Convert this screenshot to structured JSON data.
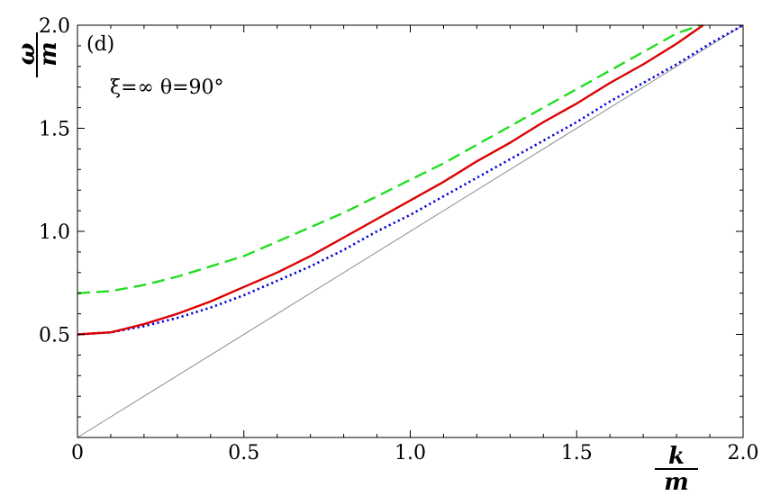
{
  "chart_data": {
    "type": "line",
    "panel_label": "(d)",
    "annotation": "ξ=∞  θ=90°",
    "xlabel": {
      "numerator": "k",
      "denominator": "m"
    },
    "ylabel": {
      "numerator": "ω",
      "denominator": "m"
    },
    "xlim": [
      0,
      2.0
    ],
    "ylim": [
      0,
      2.0
    ],
    "x_ticks": [
      0,
      0.5,
      1.0,
      1.5,
      2.0
    ],
    "x_tick_labels": [
      "0",
      "0.5",
      "1.0",
      "1.5",
      "2.0"
    ],
    "y_ticks": [
      0.5,
      1.0,
      1.5,
      2.0
    ],
    "y_tick_labels": [
      "0.5",
      "1.0",
      "1.5",
      "2.0"
    ],
    "grid": false,
    "series": [
      {
        "style": "solid-gray",
        "color": "#8c8c8c",
        "x": [
          0,
          2.0
        ],
        "y": [
          0,
          2.0
        ]
      },
      {
        "style": "dotted",
        "color": "#0000dd",
        "x": [
          0,
          0.1,
          0.2,
          0.3,
          0.4,
          0.5,
          0.6,
          0.7,
          0.8,
          0.9,
          1.0,
          1.1,
          1.2,
          1.3,
          1.4,
          1.5,
          1.6,
          1.7,
          1.8,
          1.9,
          2.0
        ],
        "y": [
          0.5,
          0.51,
          0.54,
          0.58,
          0.63,
          0.69,
          0.76,
          0.83,
          0.91,
          1.0,
          1.08,
          1.17,
          1.26,
          1.35,
          1.44,
          1.53,
          1.63,
          1.72,
          1.81,
          1.91,
          2.0
        ]
      },
      {
        "style": "solid",
        "color": "#dd0000",
        "x": [
          0,
          0.1,
          0.2,
          0.3,
          0.4,
          0.5,
          0.6,
          0.7,
          0.8,
          0.9,
          1.0,
          1.1,
          1.2,
          1.3,
          1.4,
          1.5,
          1.6,
          1.7,
          1.8,
          1.88
        ],
        "y": [
          0.5,
          0.51,
          0.55,
          0.6,
          0.66,
          0.73,
          0.8,
          0.88,
          0.97,
          1.06,
          1.15,
          1.24,
          1.34,
          1.43,
          1.53,
          1.62,
          1.72,
          1.81,
          1.91,
          2.0
        ]
      },
      {
        "style": "dashed",
        "color": "#22dd22",
        "x": [
          0,
          0.1,
          0.2,
          0.3,
          0.4,
          0.5,
          0.6,
          0.7,
          0.8,
          0.9,
          1.0,
          1.1,
          1.2,
          1.3,
          1.4,
          1.5,
          1.6,
          1.7,
          1.8,
          1.87
        ],
        "y": [
          0.7,
          0.71,
          0.74,
          0.78,
          0.83,
          0.88,
          0.95,
          1.02,
          1.09,
          1.17,
          1.25,
          1.33,
          1.42,
          1.51,
          1.6,
          1.69,
          1.78,
          1.87,
          1.96,
          2.0
        ]
      }
    ]
  }
}
